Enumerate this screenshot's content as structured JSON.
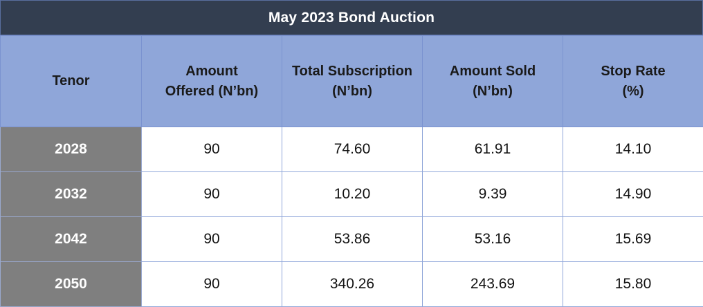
{
  "chart_data": {
    "type": "table",
    "title": "May 2023 Bond Auction",
    "columns": [
      "Tenor",
      "Amount Offered (N’bn)",
      "Total Subscription (N’bn)",
      "Amount Sold (N’bn)",
      "Stop Rate (%)"
    ],
    "header_lines": [
      [
        "Tenor"
      ],
      [
        "Amount",
        "Offered (N’bn)"
      ],
      [
        "Total Subscription",
        "(N’bn)"
      ],
      [
        "Amount Sold",
        "(N’bn)"
      ],
      [
        "Stop Rate",
        "(%)"
      ]
    ],
    "rows": [
      [
        "2028",
        "90",
        "74.60",
        "61.91",
        "14.10"
      ],
      [
        "2032",
        "90",
        "10.20",
        "9.39",
        "14.90"
      ],
      [
        "2042",
        "90",
        "53.86",
        "53.16",
        "15.69"
      ],
      [
        "2050",
        "90",
        "340.26",
        "243.69",
        "15.80"
      ]
    ]
  },
  "colors": {
    "title_background": "#333e50",
    "header_background": "#8fa6d9",
    "tenor_background": "#7f7f7f",
    "cell_background": "#ffffff"
  }
}
